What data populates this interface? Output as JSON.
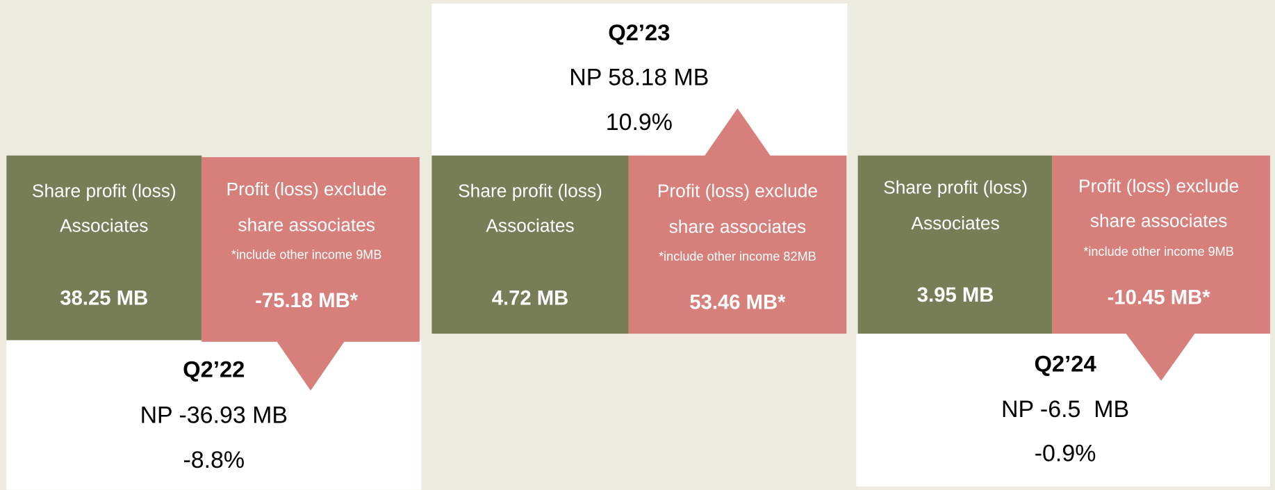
{
  "panels": [
    {
      "quarter": "Q2’22",
      "np": "NP -36.93 MB",
      "margin": "-8.8%",
      "associates": {
        "label": [
          "Share profit (loss)",
          "Associates"
        ],
        "value": "38.25 MB"
      },
      "exclude": {
        "label": [
          "Profit (loss) exclude",
          "share associates"
        ],
        "note": "*include other income 9MB",
        "value": "-75.18 MB*"
      }
    },
    {
      "quarter": "Q2’23",
      "np": "NP 58.18 MB",
      "margin": "10.9%",
      "associates": {
        "label": [
          "Share profit (loss)",
          "Associates"
        ],
        "value": "4.72 MB"
      },
      "exclude": {
        "label": [
          "Profit (loss) exclude",
          "share associates"
        ],
        "note": "*include other income 82MB",
        "value": "53.46 MB*"
      }
    },
    {
      "quarter": "Q2’24",
      "np": "NP -6.5  MB",
      "margin": "-0.9%",
      "associates": {
        "label": [
          "Share profit (loss)",
          "Associates"
        ],
        "value": "3.95 MB"
      },
      "exclude": {
        "label": [
          "Profit (loss) exclude",
          "share associates"
        ],
        "note": "*include other income 9MB",
        "value": "-10.45 MB*"
      }
    }
  ]
}
